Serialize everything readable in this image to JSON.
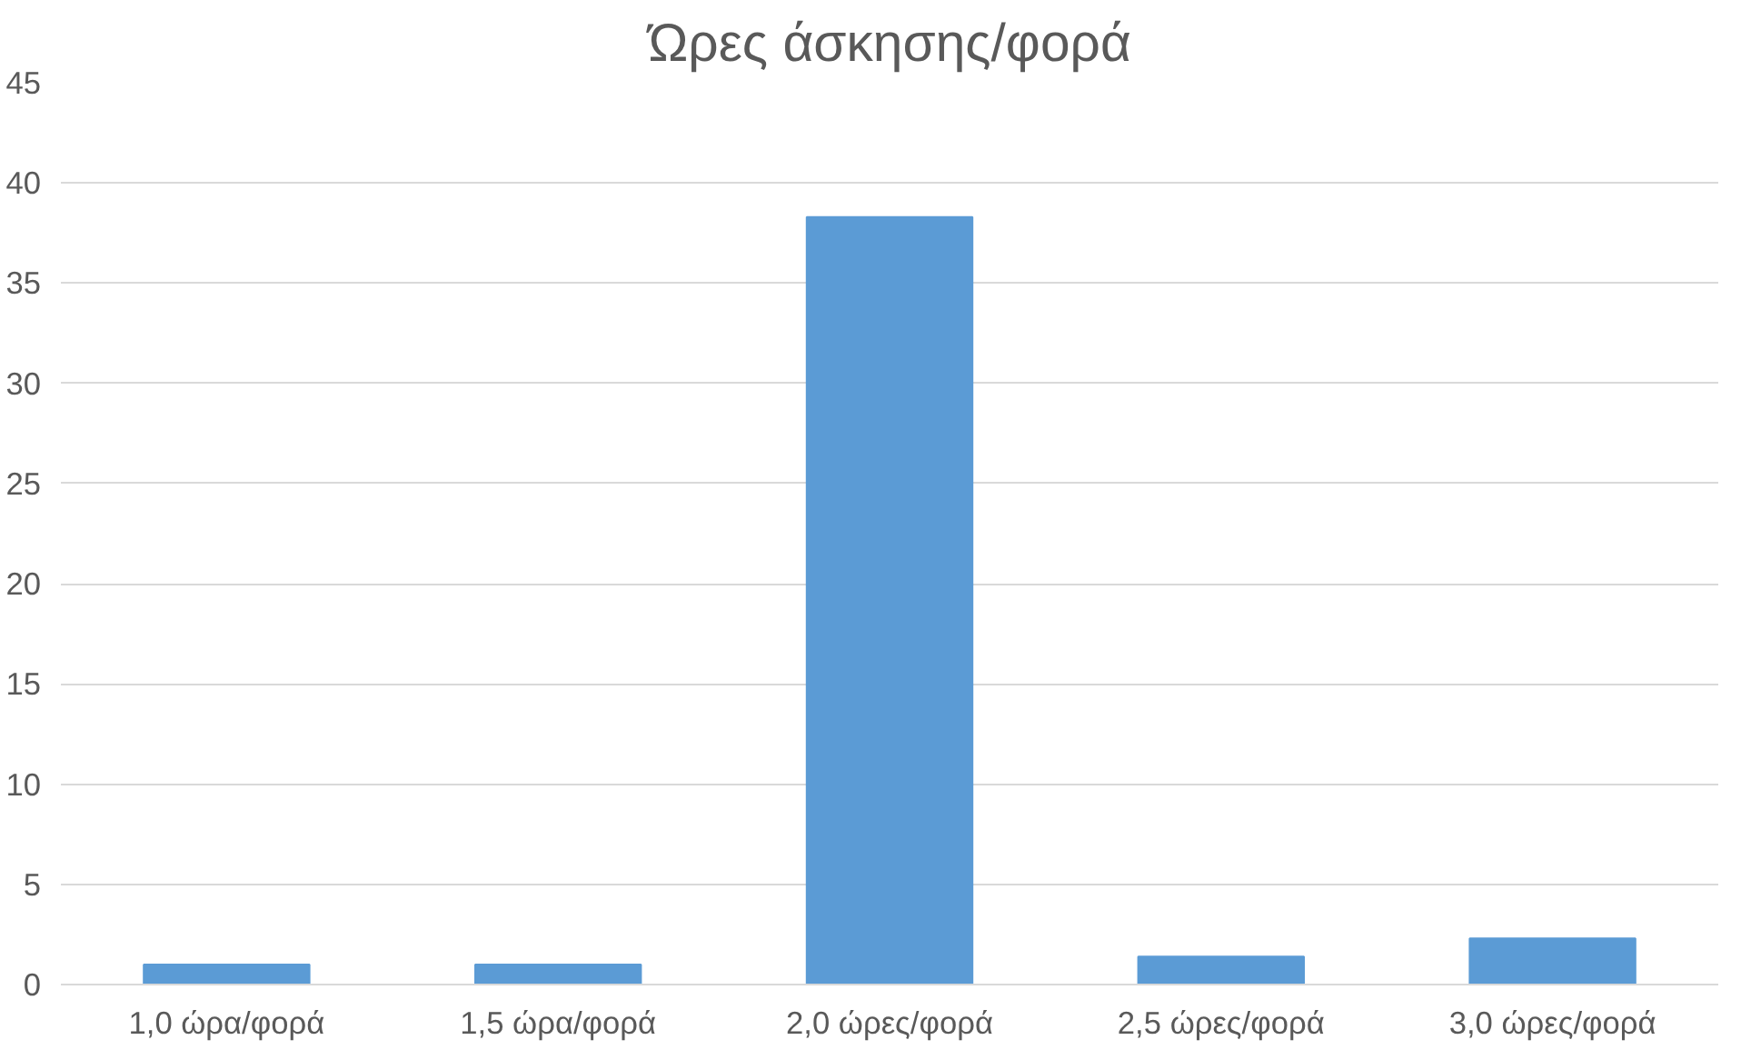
{
  "chart_data": {
    "type": "bar",
    "title": "Ώρες άσκησης/φορά",
    "categories": [
      "1,0 ώρα/φορά",
      "1,5 ώρα/φορά",
      "2,0 ώρες/φορά",
      "2,5 ώρες/φορά",
      "3,0 ώρες/φορά"
    ],
    "values": [
      1.0,
      1.0,
      38.3,
      1.4,
      2.3
    ],
    "color": "#5b9bd5",
    "ylim": [
      0,
      45
    ],
    "yticks": [
      0,
      5,
      10,
      15,
      20,
      25,
      30,
      35,
      40,
      45
    ],
    "grid": "y"
  }
}
